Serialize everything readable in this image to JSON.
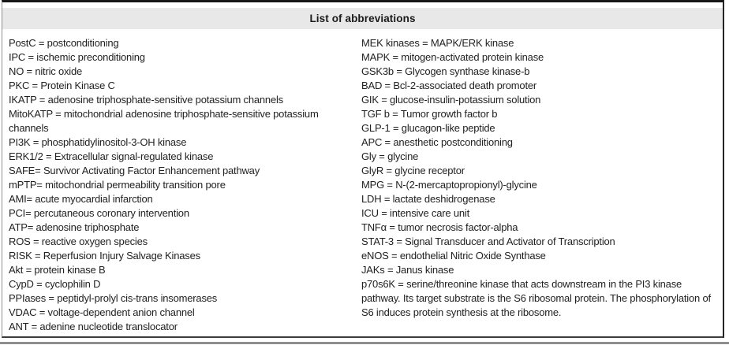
{
  "header": {
    "title": "List of abbreviations"
  },
  "abbreviations": {
    "left": [
      "PostC = postconditioning",
      "IPC = ischemic preconditioning",
      "NO = nitric oxide",
      "PKC = Protein Kinase C",
      "IKATP = adenosine triphosphate-sensitive potassium channels",
      "MitoKATP = mitochondrial adenosine triphosphate-sensitive potassium channels",
      "PI3K = phosphatidylinositol-3-OH kinase",
      "ERK1/2 = Extracellular signal-regulated kinase",
      "SAFE= Survivor Activating Factor Enhancement pathway",
      "mPTP= mitochondrial permeability transition pore",
      "AMI= acute myocardial infarction",
      "PCI= percutaneous coronary intervention",
      "ATP= adenosine triphosphate",
      "ROS = reactive oxygen species",
      "RISK = Reperfusion Injury Salvage Kinases",
      "Akt = protein kinase B",
      "CypD = cyclophilin D",
      "PPIases = peptidyl-prolyl cis-trans insomerases",
      "VDAC = voltage-dependent anion channel",
      "ANT = adenine nucleotide translocator"
    ],
    "right": [
      "MEK kinases = MAPK/ERK kinase",
      "MAPK = mitogen-activated protein kinase",
      "GSK3b = Glycogen synthase kinase-b",
      "BAD = Bcl-2-associated death promoter",
      "GIK = glucose-insulin-potassium solution",
      "TGF b = Tumor growth factor b",
      "GLP-1 = glucagon-like peptide",
      "APC = anesthetic postconditioning",
      "Gly = glycine",
      "GlyR = glycine receptor",
      "MPG = N-(2-mercaptopropionyl)-glycine",
      "LDH = lactate deshidrogenase",
      "ICU = intensive care unit",
      "TNFα = tumor necrosis factor-alpha",
      "STAT-3 = Signal Transducer and Activator of Transcription",
      "eNOS = endothelial Nitric Oxide Synthase",
      "JAKs = Janus kinase",
      "p70s6K = serine/threonine kinase that acts downstream in the PI3 kinase pathway. Its target substrate is the S6 ribosomal protein. The phosphorylation of S6 induces protein synthesis at the ribosome."
    ]
  },
  "colors": {
    "header_bg": "#e8e8e8",
    "border_dark": "#161616",
    "text": "#222222",
    "rule_gray": "#8f8f8f"
  }
}
